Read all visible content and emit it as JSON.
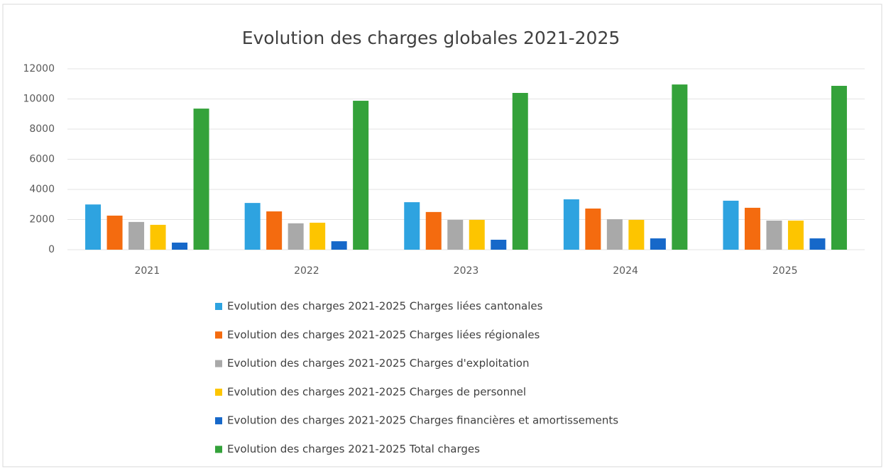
{
  "chart_data": {
    "type": "bar",
    "title": "Evolution des charges globales  2021-2025",
    "categories": [
      "2021",
      "2022",
      "2023",
      "2024",
      "2025"
    ],
    "series": [
      {
        "name": "Evolution des charges 2021-2025 Charges liées cantonales",
        "color": "#2ea3e0",
        "values": [
          3000,
          3100,
          3150,
          3340,
          3250
        ]
      },
      {
        "name": "Evolution des charges 2021-2025 Charges liées régionales",
        "color": "#f46b0f",
        "values": [
          2260,
          2540,
          2500,
          2730,
          2780
        ]
      },
      {
        "name": "Evolution des charges 2021-2025 Charges d'exploitation",
        "color": "#a9a9a9",
        "values": [
          1840,
          1750,
          1980,
          2020,
          1930
        ]
      },
      {
        "name": "Evolution des charges 2021-2025 Charges de personnel",
        "color": "#fdc500",
        "values": [
          1650,
          1790,
          1980,
          1980,
          1930
        ]
      },
      {
        "name": "Evolution des charges 2021-2025 Charges financières et amortissements",
        "color": "#1668c9",
        "values": [
          470,
          560,
          660,
          750,
          750
        ]
      },
      {
        "name": "Evolution des charges 2021-2025 Total charges",
        "color": "#34a23a",
        "values": [
          9360,
          9880,
          10400,
          10960,
          10870
        ]
      }
    ],
    "ylim": [
      0,
      12000
    ],
    "yticks": [
      0,
      2000,
      4000,
      6000,
      8000,
      10000,
      12000
    ],
    "grid": true,
    "legend": "bottom"
  }
}
